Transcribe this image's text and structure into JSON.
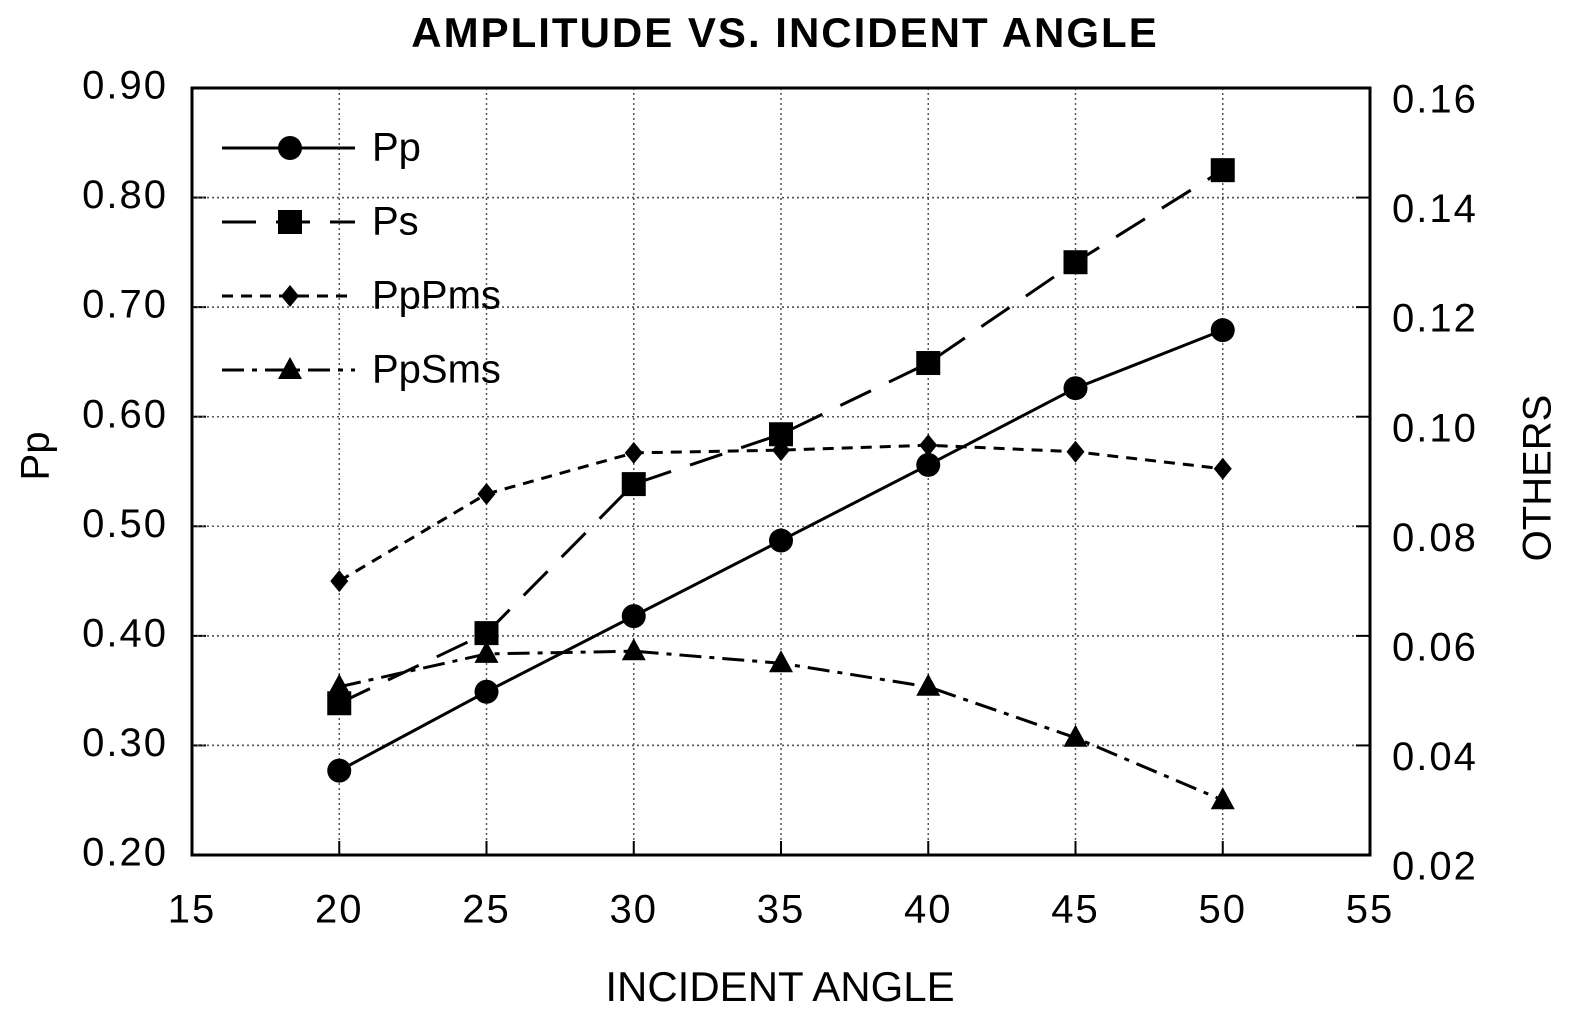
{
  "chart_data": {
    "type": "line",
    "title": "AMPLITUDE VS. INCIDENT ANGLE",
    "xlabel": "INCIDENT ANGLE",
    "ylabel": "Pp",
    "y2label": "OTHERS",
    "x": [
      20,
      25,
      30,
      35,
      40,
      45,
      50
    ],
    "xlim": [
      15,
      55
    ],
    "xticks": [
      15,
      20,
      25,
      30,
      35,
      40,
      45,
      50,
      55
    ],
    "ylim": [
      0.2,
      0.9
    ],
    "yticks": [
      {
        "value": 0.2,
        "label": "0.20"
      },
      {
        "value": 0.3,
        "label": "0.30"
      },
      {
        "value": 0.4,
        "label": "0.40"
      },
      {
        "value": 0.5,
        "label": "0.50"
      },
      {
        "value": 0.6,
        "label": "0.60"
      },
      {
        "value": 0.7,
        "label": "0.70"
      },
      {
        "value": 0.8,
        "label": "0.80"
      },
      {
        "value": 0.9,
        "label": "0.90"
      }
    ],
    "y2lim": [
      0.02,
      0.16
    ],
    "y2ticks": [
      0.02,
      0.04,
      0.06,
      0.08,
      {
        "value": 0.1,
        "label": "0.10"
      },
      0.12,
      0.14,
      0.16
    ],
    "grid": true,
    "legend": "upper left",
    "series": [
      {
        "name": "Pp",
        "color": "#000000",
        "marker": "circle",
        "line_style": "solid",
        "values": [
          0.277,
          0.349,
          0.418,
          0.487,
          0.556,
          0.626,
          0.679
        ]
      },
      {
        "name": "Ps",
        "color": "#000000",
        "marker": "square",
        "line_style": "long-dash",
        "axis": "y2",
        "values": [
          0.0477,
          0.0605,
          0.0877,
          0.0968,
          0.1098,
          0.1282,
          0.145
        ]
      },
      {
        "name": "PpPms",
        "color": "#000000",
        "marker": "diamond",
        "line_style": "short-dash",
        "axis": "y2",
        "values": [
          0.07,
          0.0859,
          0.0934,
          0.0939,
          0.0948,
          0.0936,
          0.0905
        ]
      },
      {
        "name": "PpSms",
        "color": "#000000",
        "marker": "triangle",
        "line_style": "dash-dot",
        "axis": "y2",
        "values": [
          0.0507,
          0.0567,
          0.0572,
          0.055,
          0.0507,
          0.0414,
          0.03
        ]
      }
    ]
  }
}
